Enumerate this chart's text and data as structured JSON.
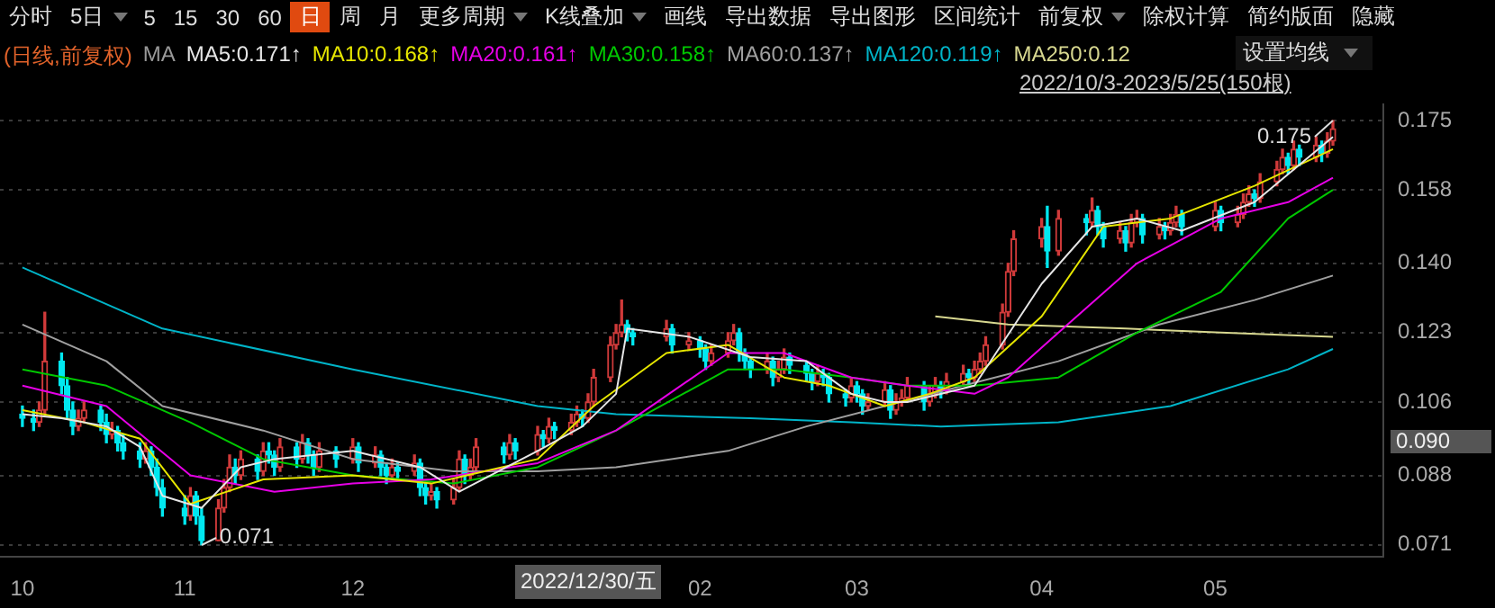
{
  "chart_data": {
    "type": "candlestick",
    "x": [
      "2022-10-03",
      "2022-10-05",
      "2022-10-06",
      "2022-10-07",
      "2022-10-10",
      "2022-10-11",
      "2022-10-12",
      "2022-10-13",
      "2022-10-14",
      "2022-10-17",
      "2022-10-18",
      "2022-10-19",
      "2022-10-20",
      "2022-10-21",
      "2022-10-24",
      "2022-10-25",
      "2022-10-26",
      "2022-10-27",
      "2022-10-28",
      "2022-11-01",
      "2022-11-02",
      "2022-11-03",
      "2022-11-04",
      "2022-11-07",
      "2022-11-08",
      "2022-11-09",
      "2022-11-10",
      "2022-11-11",
      "2022-11-14",
      "2022-11-15",
      "2022-11-16",
      "2022-11-17",
      "2022-11-18",
      "2022-11-21",
      "2022-11-22",
      "2022-11-23",
      "2022-11-24",
      "2022-11-25",
      "2022-11-28",
      "2022-12-01",
      "2022-12-02",
      "2022-12-05",
      "2022-12-06",
      "2022-12-07",
      "2022-12-08",
      "2022-12-09",
      "2022-12-12",
      "2022-12-13",
      "2022-12-14",
      "2022-12-15",
      "2022-12-16",
      "2022-12-19",
      "2022-12-20",
      "2022-12-21",
      "2022-12-22",
      "2022-12-23",
      "2022-12-28",
      "2022-12-29",
      "2022-12-30",
      "2023-01-03",
      "2023-01-04",
      "2023-01-05",
      "2023-01-06",
      "2023-01-09",
      "2023-01-10",
      "2023-01-11",
      "2023-01-12",
      "2023-01-13",
      "2023-01-16",
      "2023-01-17",
      "2023-01-18",
      "2023-01-19",
      "2023-01-20",
      "2023-01-26",
      "2023-01-27",
      "2023-01-30",
      "2023-02-01",
      "2023-02-02",
      "2023-02-03",
      "2023-02-06",
      "2023-02-07",
      "2023-02-08",
      "2023-02-09",
      "2023-02-10",
      "2023-02-13",
      "2023-02-14",
      "2023-02-15",
      "2023-02-16",
      "2023-02-17",
      "2023-02-20",
      "2023-02-21",
      "2023-02-22",
      "2023-02-23",
      "2023-02-24",
      "2023-02-27",
      "2023-02-28",
      "2023-03-01",
      "2023-03-02",
      "2023-03-03",
      "2023-03-06",
      "2023-03-07",
      "2023-03-08",
      "2023-03-09",
      "2023-03-10",
      "2023-03-13",
      "2023-03-14",
      "2023-03-15",
      "2023-03-16",
      "2023-03-17",
      "2023-03-20",
      "2023-03-21",
      "2023-03-22",
      "2023-03-23",
      "2023-03-24",
      "2023-03-27",
      "2023-03-28",
      "2023-03-29",
      "2023-04-03",
      "2023-04-04",
      "2023-04-06",
      "2023-04-11",
      "2023-04-12",
      "2023-04-13",
      "2023-04-14",
      "2023-04-17",
      "2023-04-18",
      "2023-04-19",
      "2023-04-20",
      "2023-04-21",
      "2023-04-24",
      "2023-04-25",
      "2023-04-26",
      "2023-04-27",
      "2023-04-28",
      "2023-05-04",
      "2023-05-05",
      "2023-05-08",
      "2023-05-09",
      "2023-05-10",
      "2023-05-11",
      "2023-05-12",
      "2023-05-15",
      "2023-05-16",
      "2023-05-17",
      "2023-05-18",
      "2023-05-19",
      "2023-05-22",
      "2023-05-23",
      "2023-05-24",
      "2023-05-25"
    ],
    "xlim": [
      "2022-09-29",
      "2023-06-03"
    ],
    "xticks": [
      {
        "value": "2022-10-03",
        "label": "10"
      },
      {
        "value": "2022-11-01",
        "label": "11"
      },
      {
        "value": "2022-12-01",
        "label": "12"
      },
      {
        "value": "2023-02-01",
        "label": "02"
      },
      {
        "value": "2023-03-01",
        "label": "03"
      },
      {
        "value": "2023-04-03",
        "label": "04"
      },
      {
        "value": "2023-05-04",
        "label": "05"
      }
    ],
    "ylim": [
      0.068,
      0.179
    ],
    "yticks": [
      {
        "value": 0.071,
        "label": "0.071"
      },
      {
        "value": 0.088,
        "label": "0.088"
      },
      {
        "value": 0.106,
        "label": "0.106"
      },
      {
        "value": 0.123,
        "label": "0.123"
      },
      {
        "value": 0.14,
        "label": "0.140"
      },
      {
        "value": 0.158,
        "label": "0.158"
      },
      {
        "value": 0.175,
        "label": "0.175"
      }
    ],
    "grid": "y",
    "legend": "top left",
    "series": [
      {
        "colors": [
          "#00e8f0",
          "#00e8f0",
          "#d03a3a",
          "#d03a3a",
          "#00e8f0",
          "#00e8f0",
          "#00e8f0",
          "#d03a3a",
          "#d03a3a",
          "#00e8f0",
          "#00e8f0",
          "#d03a3a",
          "#00e8f0",
          "#00e8f0",
          "#00e8f0",
          "#d03a3a",
          "#00e8f0",
          "#00e8f0",
          "#00e8f0",
          "#00e8f0",
          "#d03a3a",
          "#00e8f0",
          "#00e8f0",
          "#d03a3a",
          "#d03a3a",
          "#d03a3a",
          "#00e8f0",
          "#d03a3a",
          "#00e8f0",
          "#d03a3a",
          "#00e8f0",
          "#00e8f0",
          "#d03a3a",
          "#00e8f0",
          "#d03a3a",
          "#00e8f0",
          "#00e8f0",
          "#d03a3a",
          "#00e8f0",
          "#d03a3a",
          "#00e8f0",
          "#d03a3a",
          "#00e8f0",
          "#00e8f0",
          "#d03a3a",
          "#00e8f0",
          "#d03a3a",
          "#00e8f0",
          "#00e8f0",
          "#d03a3a",
          "#00e8f0",
          "#d03a3a",
          "#d03a3a",
          "#00e8f0",
          "#d03a3a",
          "#d03a3a",
          "#00e8f0",
          "#d03a3a",
          "#00e8f0",
          "#d03a3a",
          "#00e8f0",
          "#d03a3a",
          "#00e8f0",
          "#d03a3a",
          "#d03a3a",
          "#00e8f0",
          "#d03a3a",
          "#d03a3a",
          "#d03a3a",
          "#d03a3a",
          "#d03a3a",
          "#00e8f0",
          "#00e8f0",
          "#d03a3a",
          "#00e8f0",
          "#d03a3a",
          "#00e8f0",
          "#00e8f0",
          "#d03a3a",
          "#d03a3a",
          "#d03a3a",
          "#00e8f0",
          "#00e8f0",
          "#00e8f0",
          "#d03a3a",
          "#00e8f0",
          "#d03a3a",
          "#d03a3a",
          "#00e8f0",
          "#00e8f0",
          "#00e8f0",
          "#d03a3a",
          "#00e8f0",
          "#00e8f0",
          "#00e8f0",
          "#d03a3a",
          "#00e8f0",
          "#00e8f0",
          "#d03a3a",
          "#d03a3a",
          "#00e8f0",
          "#d03a3a",
          "#d03a3a",
          "#d03a3a",
          "#00e8f0",
          "#d03a3a",
          "#d03a3a",
          "#00e8f0",
          "#d03a3a",
          "#d03a3a",
          "#00e8f0",
          "#d03a3a",
          "#d03a3a",
          "#d03a3a",
          "#d03a3a",
          "#d03a3a",
          "#d03a3a",
          "#d03a3a",
          "#00e8f0",
          "#d03a3a",
          "#00e8f0",
          "#d03a3a",
          "#00e8f0",
          "#00e8f0",
          "#d03a3a",
          "#00e8f0",
          "#d03a3a",
          "#d03a3a",
          "#00e8f0",
          "#d03a3a",
          "#00e8f0",
          "#d03a3a",
          "#d03a3a",
          "#00e8f0",
          "#d03a3a",
          "#00e8f0",
          "#d03a3a",
          "#d03a3a",
          "#d03a3a",
          "#00e8f0",
          "#d03a3a",
          "#d03a3a",
          "#d03a3a",
          "#00e8f0",
          "#d03a3a",
          "#00e8f0",
          "#d03a3a",
          "#00e8f0",
          "#d03a3a",
          "#d03a3a"
        ],
        "ohlc": [
          [
            0.103,
            0.105,
            0.1,
            0.102
          ],
          [
            0.102,
            0.104,
            0.099,
            0.101
          ],
          [
            0.101,
            0.106,
            0.1,
            0.104
          ],
          [
            0.104,
            0.128,
            0.103,
            0.116
          ],
          [
            0.116,
            0.118,
            0.108,
            0.11
          ],
          [
            0.11,
            0.112,
            0.102,
            0.104
          ],
          [
            0.104,
            0.106,
            0.098,
            0.1
          ],
          [
            0.1,
            0.104,
            0.099,
            0.102
          ],
          [
            0.102,
            0.106,
            0.101,
            0.104
          ],
          [
            0.104,
            0.105,
            0.099,
            0.101
          ],
          [
            0.101,
            0.103,
            0.096,
            0.098
          ],
          [
            0.098,
            0.101,
            0.097,
            0.099
          ],
          [
            0.099,
            0.1,
            0.094,
            0.096
          ],
          [
            0.096,
            0.098,
            0.092,
            0.094
          ],
          [
            0.094,
            0.096,
            0.09,
            0.092
          ],
          [
            0.092,
            0.096,
            0.091,
            0.094
          ],
          [
            0.094,
            0.095,
            0.088,
            0.09
          ],
          [
            0.09,
            0.092,
            0.083,
            0.085
          ],
          [
            0.085,
            0.087,
            0.078,
            0.08
          ],
          [
            0.08,
            0.083,
            0.076,
            0.078
          ],
          [
            0.078,
            0.085,
            0.077,
            0.083
          ],
          [
            0.083,
            0.084,
            0.076,
            0.078
          ],
          [
            0.078,
            0.08,
            0.071,
            0.072
          ],
          [
            0.072,
            0.082,
            0.072,
            0.08
          ],
          [
            0.08,
            0.087,
            0.079,
            0.085
          ],
          [
            0.085,
            0.093,
            0.084,
            0.09
          ],
          [
            0.09,
            0.092,
            0.086,
            0.088
          ],
          [
            0.088,
            0.094,
            0.087,
            0.092
          ],
          [
            0.092,
            0.093,
            0.087,
            0.089
          ],
          [
            0.089,
            0.096,
            0.088,
            0.094
          ],
          [
            0.094,
            0.096,
            0.091,
            0.093
          ],
          [
            0.093,
            0.094,
            0.088,
            0.09
          ],
          [
            0.09,
            0.097,
            0.089,
            0.095
          ],
          [
            0.095,
            0.096,
            0.09,
            0.092
          ],
          [
            0.092,
            0.098,
            0.091,
            0.096
          ],
          [
            0.096,
            0.097,
            0.091,
            0.093
          ],
          [
            0.093,
            0.094,
            0.088,
            0.09
          ],
          [
            0.09,
            0.096,
            0.089,
            0.094
          ],
          [
            0.094,
            0.095,
            0.09,
            0.092
          ],
          [
            0.092,
            0.097,
            0.091,
            0.095
          ],
          [
            0.095,
            0.096,
            0.089,
            0.091
          ],
          [
            0.091,
            0.095,
            0.09,
            0.093
          ],
          [
            0.093,
            0.094,
            0.088,
            0.09
          ],
          [
            0.09,
            0.091,
            0.086,
            0.088
          ],
          [
            0.088,
            0.092,
            0.087,
            0.09
          ],
          [
            0.09,
            0.091,
            0.087,
            0.089
          ],
          [
            0.089,
            0.093,
            0.088,
            0.091
          ],
          [
            0.091,
            0.092,
            0.083,
            0.085
          ],
          [
            0.085,
            0.086,
            0.081,
            0.083
          ],
          [
            0.083,
            0.086,
            0.082,
            0.084
          ],
          [
            0.084,
            0.085,
            0.08,
            0.082
          ],
          [
            0.082,
            0.087,
            0.081,
            0.085
          ],
          [
            0.085,
            0.094,
            0.084,
            0.092
          ],
          [
            0.092,
            0.093,
            0.086,
            0.088
          ],
          [
            0.088,
            0.092,
            0.087,
            0.09
          ],
          [
            0.09,
            0.097,
            0.089,
            0.095
          ],
          [
            0.095,
            0.096,
            0.091,
            0.093
          ],
          [
            0.093,
            0.098,
            0.092,
            0.096
          ],
          [
            0.096,
            0.097,
            0.092,
            0.094
          ],
          [
            0.094,
            0.1,
            0.093,
            0.098
          ],
          [
            0.098,
            0.099,
            0.095,
            0.097
          ],
          [
            0.097,
            0.102,
            0.096,
            0.1
          ],
          [
            0.1,
            0.101,
            0.097,
            0.099
          ],
          [
            0.099,
            0.103,
            0.098,
            0.101
          ],
          [
            0.101,
            0.105,
            0.1,
            0.103
          ],
          [
            0.103,
            0.104,
            0.1,
            0.102
          ],
          [
            0.102,
            0.108,
            0.101,
            0.106
          ],
          [
            0.106,
            0.114,
            0.105,
            0.112
          ],
          [
            0.112,
            0.122,
            0.111,
            0.12
          ],
          [
            0.12,
            0.125,
            0.119,
            0.123
          ],
          [
            0.123,
            0.131,
            0.122,
            0.125
          ],
          [
            0.125,
            0.126,
            0.121,
            0.123
          ],
          [
            0.123,
            0.124,
            0.12,
            0.122
          ],
          [
            0.122,
            0.126,
            0.121,
            0.124
          ],
          [
            0.124,
            0.125,
            0.118,
            0.12
          ],
          [
            0.12,
            0.123,
            0.119,
            0.121
          ],
          [
            0.121,
            0.122,
            0.117,
            0.119
          ],
          [
            0.119,
            0.12,
            0.114,
            0.116
          ],
          [
            0.116,
            0.12,
            0.115,
            0.118
          ],
          [
            0.118,
            0.123,
            0.117,
            0.121
          ],
          [
            0.121,
            0.125,
            0.12,
            0.123
          ],
          [
            0.123,
            0.124,
            0.116,
            0.118
          ],
          [
            0.118,
            0.119,
            0.114,
            0.116
          ],
          [
            0.116,
            0.117,
            0.112,
            0.114
          ],
          [
            0.114,
            0.118,
            0.113,
            0.116
          ],
          [
            0.116,
            0.117,
            0.11,
            0.112
          ],
          [
            0.112,
            0.116,
            0.111,
            0.114
          ],
          [
            0.114,
            0.119,
            0.113,
            0.117
          ],
          [
            0.117,
            0.118,
            0.113,
            0.115
          ],
          [
            0.115,
            0.116,
            0.111,
            0.113
          ],
          [
            0.113,
            0.114,
            0.109,
            0.111
          ],
          [
            0.111,
            0.115,
            0.11,
            0.113
          ],
          [
            0.113,
            0.114,
            0.11,
            0.112
          ],
          [
            0.112,
            0.113,
            0.106,
            0.108
          ],
          [
            0.108,
            0.109,
            0.105,
            0.107
          ],
          [
            0.107,
            0.112,
            0.106,
            0.11
          ],
          [
            0.11,
            0.111,
            0.106,
            0.108
          ],
          [
            0.108,
            0.109,
            0.103,
            0.105
          ],
          [
            0.105,
            0.108,
            0.104,
            0.106
          ],
          [
            0.106,
            0.111,
            0.105,
            0.109
          ],
          [
            0.109,
            0.11,
            0.102,
            0.104
          ],
          [
            0.104,
            0.108,
            0.103,
            0.106
          ],
          [
            0.106,
            0.109,
            0.105,
            0.107
          ],
          [
            0.107,
            0.112,
            0.106,
            0.11
          ],
          [
            0.11,
            0.111,
            0.104,
            0.106
          ],
          [
            0.106,
            0.11,
            0.105,
            0.108
          ],
          [
            0.108,
            0.112,
            0.107,
            0.11
          ],
          [
            0.11,
            0.111,
            0.107,
            0.109
          ],
          [
            0.109,
            0.113,
            0.108,
            0.111
          ],
          [
            0.111,
            0.115,
            0.11,
            0.113
          ],
          [
            0.113,
            0.114,
            0.11,
            0.112
          ],
          [
            0.112,
            0.116,
            0.111,
            0.114
          ],
          [
            0.114,
            0.118,
            0.113,
            0.116
          ],
          [
            0.116,
            0.122,
            0.115,
            0.12
          ],
          [
            0.12,
            0.13,
            0.119,
            0.128
          ],
          [
            0.128,
            0.14,
            0.127,
            0.138
          ],
          [
            0.138,
            0.148,
            0.137,
            0.146
          ],
          [
            0.146,
            0.151,
            0.144,
            0.149
          ],
          [
            0.149,
            0.154,
            0.139,
            0.143
          ],
          [
            0.143,
            0.153,
            0.142,
            0.151
          ],
          [
            0.151,
            0.152,
            0.147,
            0.15
          ],
          [
            0.15,
            0.156,
            0.149,
            0.153
          ],
          [
            0.153,
            0.154,
            0.147,
            0.149
          ],
          [
            0.149,
            0.15,
            0.144,
            0.146
          ],
          [
            0.146,
            0.15,
            0.145,
            0.148
          ],
          [
            0.148,
            0.149,
            0.143,
            0.145
          ],
          [
            0.145,
            0.152,
            0.144,
            0.15
          ],
          [
            0.15,
            0.153,
            0.149,
            0.151
          ],
          [
            0.151,
            0.152,
            0.145,
            0.147
          ],
          [
            0.147,
            0.151,
            0.146,
            0.149
          ],
          [
            0.149,
            0.15,
            0.146,
            0.148
          ],
          [
            0.148,
            0.152,
            0.147,
            0.15
          ],
          [
            0.15,
            0.154,
            0.149,
            0.152
          ],
          [
            0.152,
            0.153,
            0.147,
            0.149
          ],
          [
            0.149,
            0.155,
            0.148,
            0.153
          ],
          [
            0.153,
            0.154,
            0.148,
            0.15
          ],
          [
            0.15,
            0.154,
            0.149,
            0.152
          ],
          [
            0.152,
            0.157,
            0.151,
            0.155
          ],
          [
            0.155,
            0.159,
            0.154,
            0.157
          ],
          [
            0.157,
            0.158,
            0.154,
            0.156
          ],
          [
            0.156,
            0.162,
            0.155,
            0.16
          ],
          [
            0.16,
            0.165,
            0.159,
            0.163
          ],
          [
            0.163,
            0.168,
            0.162,
            0.166
          ],
          [
            0.166,
            0.167,
            0.162,
            0.164
          ],
          [
            0.164,
            0.17,
            0.163,
            0.168
          ],
          [
            0.168,
            0.169,
            0.164,
            0.166
          ],
          [
            0.166,
            0.171,
            0.165,
            0.169
          ],
          [
            0.169,
            0.17,
            0.165,
            0.167
          ],
          [
            0.167,
            0.172,
            0.166,
            0.17
          ],
          [
            0.17,
            0.175,
            0.169,
            0.173
          ]
        ]
      },
      {
        "type": "line",
        "name": "MA5:0.171↑",
        "color": "#e6e6e6",
        "x": [
          "2022-10-03",
          "2022-10-10",
          "2022-10-18",
          "2022-10-24",
          "2022-10-28",
          "2022-11-04",
          "2022-11-11",
          "2022-11-17",
          "2022-12-01",
          "2022-12-13",
          "2022-12-20",
          "2023-01-03",
          "2023-01-11",
          "2023-01-17",
          "2023-01-19",
          "2023-01-30",
          "2023-02-10",
          "2023-02-20",
          "2023-02-28",
          "2023-03-06",
          "2023-03-10",
          "2023-03-22",
          "2023-04-03",
          "2023-04-12",
          "2023-04-20",
          "2023-04-28",
          "2023-05-11",
          "2023-05-25"
        ],
        "values": [
          0.103,
          0.102,
          0.1,
          0.095,
          0.083,
          0.08,
          0.09,
          0.092,
          0.094,
          0.09,
          0.084,
          0.094,
          0.1,
          0.108,
          0.124,
          0.122,
          0.117,
          0.116,
          0.108,
          0.106,
          0.106,
          0.11,
          0.135,
          0.149,
          0.151,
          0.148,
          0.155,
          0.171
        ]
      },
      {
        "type": "line",
        "name": "MA10:0.168↑",
        "color": "#e6e600",
        "x": [
          "2022-10-03",
          "2022-10-14",
          "2022-10-24",
          "2022-11-02",
          "2022-11-15",
          "2022-12-01",
          "2022-12-15",
          "2023-01-03",
          "2023-01-13",
          "2023-01-26",
          "2023-02-06",
          "2023-02-16",
          "2023-02-24",
          "2023-03-06",
          "2023-03-14",
          "2023-03-22",
          "2023-04-03",
          "2023-04-14",
          "2023-04-26",
          "2023-05-11",
          "2023-05-25"
        ],
        "values": [
          0.104,
          0.101,
          0.097,
          0.081,
          0.087,
          0.088,
          0.086,
          0.092,
          0.105,
          0.118,
          0.12,
          0.112,
          0.11,
          0.105,
          0.108,
          0.112,
          0.127,
          0.149,
          0.151,
          0.159,
          0.168
        ]
      },
      {
        "type": "line",
        "name": "MA20:0.161↑",
        "color": "#e600e6",
        "x": [
          "2022-10-03",
          "2022-10-18",
          "2022-11-02",
          "2022-11-17",
          "2022-12-01",
          "2022-12-15",
          "2023-01-03",
          "2023-01-17",
          "2023-02-06",
          "2023-02-16",
          "2023-02-28",
          "2023-03-10",
          "2023-03-22",
          "2023-03-28",
          "2023-04-06",
          "2023-04-20",
          "2023-05-05",
          "2023-05-17",
          "2023-05-25"
        ],
        "values": [
          0.11,
          0.105,
          0.088,
          0.084,
          0.086,
          0.087,
          0.091,
          0.099,
          0.118,
          0.118,
          0.112,
          0.11,
          0.108,
          0.112,
          0.123,
          0.14,
          0.151,
          0.155,
          0.161
        ]
      },
      {
        "type": "line",
        "name": "MA30:0.158↑",
        "color": "#00c800",
        "x": [
          "2022-10-03",
          "2022-10-18",
          "2022-11-02",
          "2022-11-15",
          "2022-12-01",
          "2022-12-19",
          "2023-01-03",
          "2023-01-17",
          "2023-02-06",
          "2023-02-16",
          "2023-02-28",
          "2023-03-10",
          "2023-03-22",
          "2023-04-06",
          "2023-04-20",
          "2023-05-05",
          "2023-05-17",
          "2023-05-25"
        ],
        "values": [
          0.114,
          0.11,
          0.101,
          0.092,
          0.088,
          0.086,
          0.09,
          0.099,
          0.114,
          0.114,
          0.112,
          0.11,
          0.11,
          0.112,
          0.123,
          0.133,
          0.151,
          0.158
        ]
      },
      {
        "type": "line",
        "name": "MA60:0.137↑",
        "color": "#a0a0a0",
        "x": [
          "2022-10-03",
          "2022-10-18",
          "2022-10-28",
          "2022-11-15",
          "2022-12-01",
          "2022-12-19",
          "2023-01-03",
          "2023-01-17",
          "2023-02-06",
          "2023-02-20",
          "2023-03-06",
          "2023-03-20",
          "2023-04-06",
          "2023-04-24",
          "2023-05-11",
          "2023-05-25"
        ],
        "values": [
          0.125,
          0.116,
          0.105,
          0.099,
          0.092,
          0.089,
          0.089,
          0.09,
          0.094,
          0.1,
          0.105,
          0.11,
          0.116,
          0.125,
          0.131,
          0.137
        ]
      },
      {
        "type": "line",
        "name": "MA120:0.119↑",
        "color": "#00b4c8",
        "x": [
          "2022-10-03",
          "2022-10-28",
          "2022-12-01",
          "2023-01-03",
          "2023-01-17",
          "2023-02-10",
          "2023-02-28",
          "2023-03-16",
          "2023-04-06",
          "2023-04-26",
          "2023-05-17",
          "2023-05-25"
        ],
        "values": [
          0.139,
          0.124,
          0.114,
          0.105,
          0.103,
          0.102,
          0.101,
          0.1,
          0.101,
          0.105,
          0.114,
          0.119
        ]
      },
      {
        "type": "line",
        "name": "MA250:0.12",
        "color": "#d8d890",
        "x": [
          "2023-03-15",
          "2023-03-28",
          "2023-04-18",
          "2023-05-05",
          "2023-05-25"
        ],
        "values": [
          0.127,
          0.125,
          0.124,
          0.123,
          0.122
        ]
      }
    ],
    "annotations": [
      "分时",
      "5日",
      "5",
      "15",
      "30",
      "60",
      "日",
      "周",
      "月",
      "更多周期",
      "K线叠加",
      "画线",
      "导出数据",
      "导出图形",
      "区间统计",
      "前复权",
      "除权计算",
      "简约版面",
      "隐藏",
      "(日线,前复权)",
      "MA",
      "设置均线",
      "2022/10/3-2023/5/25(150根)",
      "2022/12/30/五",
      "0.090",
      {
        "text": "0.175",
        "x": "2023-05-25",
        "y": 0.175
      },
      {
        "text": "0.071",
        "x": "2022-11-04",
        "y": 0.071
      }
    ]
  }
}
